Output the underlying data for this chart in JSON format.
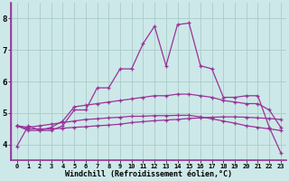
{
  "bg_color": "#cde8e8",
  "line_color": "#993399",
  "grid_color": "#aacccc",
  "xlabel": "Windchill (Refroidissement éolien,°C)",
  "xlim": [
    -0.5,
    23.5
  ],
  "ylim": [
    3.5,
    8.5
  ],
  "xticks": [
    0,
    1,
    2,
    3,
    4,
    5,
    6,
    7,
    8,
    9,
    10,
    11,
    12,
    13,
    14,
    15,
    16,
    17,
    18,
    19,
    20,
    21,
    22,
    23
  ],
  "yticks": [
    4,
    5,
    6,
    7,
    8
  ],
  "series": [
    [
      3.95,
      4.6,
      4.45,
      4.45,
      4.6,
      5.1,
      5.1,
      5.8,
      5.8,
      6.4,
      6.4,
      7.2,
      7.75,
      6.5,
      7.8,
      7.85,
      6.5,
      6.4,
      5.5,
      5.5,
      5.55,
      5.55,
      4.55,
      3.75
    ],
    [
      4.6,
      4.45,
      4.45,
      4.55,
      4.75,
      5.2,
      5.25,
      5.3,
      5.35,
      5.4,
      5.45,
      5.5,
      5.55,
      5.55,
      5.6,
      5.6,
      5.55,
      5.5,
      5.4,
      5.35,
      5.3,
      5.3,
      5.1,
      4.55
    ],
    [
      4.6,
      4.55,
      4.6,
      4.65,
      4.7,
      4.75,
      4.8,
      4.82,
      4.85,
      4.87,
      4.9,
      4.9,
      4.92,
      4.92,
      4.93,
      4.93,
      4.88,
      4.82,
      4.75,
      4.68,
      4.6,
      4.55,
      4.5,
      4.45
    ],
    [
      4.6,
      4.5,
      4.5,
      4.5,
      4.52,
      4.55,
      4.57,
      4.6,
      4.62,
      4.65,
      4.7,
      4.73,
      4.76,
      4.78,
      4.8,
      4.83,
      4.85,
      4.87,
      4.88,
      4.88,
      4.87,
      4.85,
      4.83,
      4.8
    ]
  ],
  "xlabel_fontsize": 6.0,
  "xtick_fontsize": 5.0,
  "ytick_fontsize": 6.5
}
